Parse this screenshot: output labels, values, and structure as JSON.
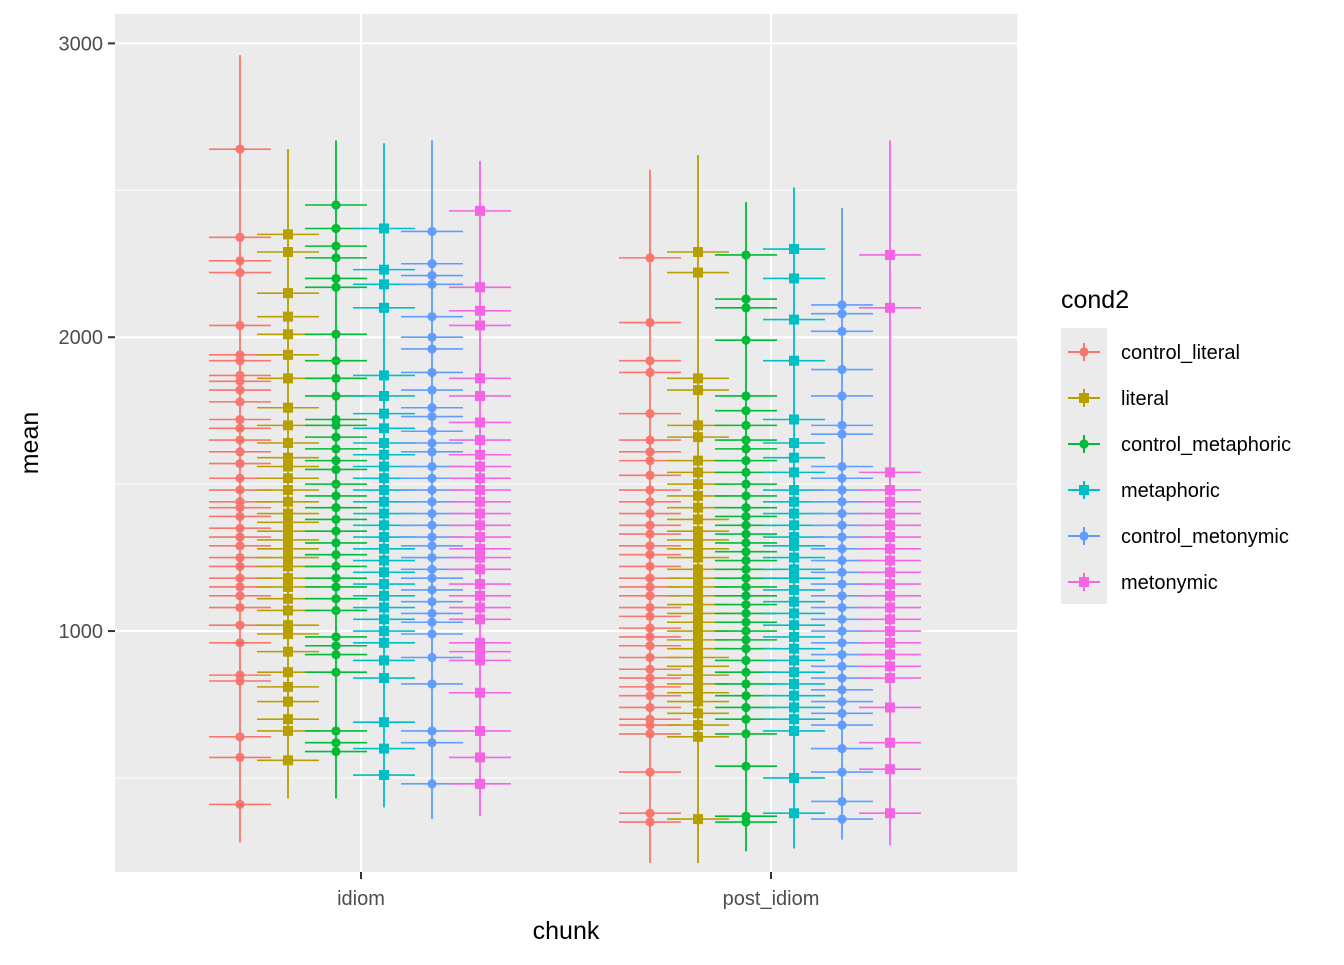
{
  "chart_data": {
    "type": "scatter",
    "title": "",
    "xlabel": "chunk",
    "ylabel": "mean",
    "categories": [
      "idiom",
      "post_idiom"
    ],
    "ylim": [
      180,
      3100
    ],
    "y_ticks": [
      1000,
      2000,
      3000
    ],
    "grid": true,
    "legend": {
      "title": "cond2",
      "position": "right",
      "entries": [
        "control_literal",
        "literal",
        "control_metaphoric",
        "metaphoric",
        "control_metonymic",
        "metonymic"
      ]
    },
    "colors": {
      "control_literal": "#F8766D",
      "literal": "#B79F00",
      "control_metaphoric": "#00BA38",
      "metaphoric": "#00BFC4",
      "control_metonymic": "#619CFF",
      "metonymic": "#F564E3",
      "panel": "#EBEBEB",
      "grid": "#FFFFFF",
      "text": "#4D4D4D"
    },
    "series": [
      {
        "name": "control_literal",
        "shape": "circle",
        "points": [
          {
            "x": "idiom",
            "values": [
              2640,
              2340,
              2260,
              2220,
              2040,
              1940,
              1920,
              1870,
              1850,
              1820,
              1780,
              1720,
              1690,
              1650,
              1610,
              1570,
              1520,
              1480,
              1440,
              1420,
              1390,
              1350,
              1320,
              1290,
              1250,
              1220,
              1180,
              1150,
              1120,
              1080,
              1020,
              960,
              850,
              830,
              640,
              570,
              410
            ],
            "whisker_low": 280,
            "whisker_high": 2960
          },
          {
            "x": "post_idiom",
            "values": [
              2270,
              2050,
              1920,
              1880,
              1740,
              1650,
              1610,
              1580,
              1530,
              1480,
              1440,
              1400,
              1360,
              1330,
              1290,
              1260,
              1220,
              1180,
              1150,
              1120,
              1080,
              1050,
              1010,
              980,
              950,
              910,
              870,
              840,
              810,
              780,
              740,
              700,
              680,
              650,
              520,
              380,
              350
            ],
            "whisker_low": 210,
            "whisker_high": 2570
          }
        ]
      },
      {
        "name": "literal",
        "shape": "square",
        "points": [
          {
            "x": "idiom",
            "values": [
              2350,
              2290,
              2150,
              2070,
              2010,
              1940,
              1860,
              1760,
              1700,
              1640,
              1590,
              1560,
              1520,
              1480,
              1440,
              1400,
              1370,
              1340,
              1310,
              1280,
              1250,
              1220,
              1180,
              1150,
              1110,
              1070,
              1020,
              990,
              930,
              860,
              810,
              760,
              700,
              660,
              560
            ],
            "whisker_low": 430,
            "whisker_high": 2640
          },
          {
            "x": "post_idiom",
            "values": [
              2290,
              2220,
              1860,
              1820,
              1700,
              1660,
              1580,
              1540,
              1500,
              1460,
              1420,
              1380,
              1340,
              1310,
              1280,
              1250,
              1210,
              1180,
              1150,
              1120,
              1090,
              1060,
              1030,
              1000,
              970,
              940,
              910,
              880,
              850,
              820,
              790,
              760,
              720,
              680,
              640,
              360
            ],
            "whisker_low": 210,
            "whisker_high": 2620
          }
        ]
      },
      {
        "name": "control_metaphoric",
        "shape": "circle",
        "points": [
          {
            "x": "idiom",
            "values": [
              2450,
              2370,
              2310,
              2270,
              2200,
              2170,
              2010,
              1920,
              1860,
              1800,
              1720,
              1700,
              1660,
              1620,
              1580,
              1550,
              1500,
              1460,
              1420,
              1380,
              1340,
              1300,
              1260,
              1220,
              1180,
              1150,
              1110,
              1070,
              980,
              950,
              920,
              860,
              660,
              620,
              590
            ],
            "whisker_low": 430,
            "whisker_high": 2670
          },
          {
            "x": "post_idiom",
            "values": [
              2280,
              2130,
              2100,
              1990,
              1800,
              1750,
              1700,
              1650,
              1620,
              1580,
              1540,
              1500,
              1460,
              1420,
              1390,
              1360,
              1330,
              1300,
              1270,
              1240,
              1210,
              1180,
              1150,
              1120,
              1090,
              1060,
              1030,
              1000,
              970,
              940,
              900,
              860,
              820,
              780,
              740,
              700,
              650,
              540,
              370,
              350
            ],
            "whisker_low": 250,
            "whisker_high": 2460
          }
        ]
      },
      {
        "name": "metaphoric",
        "shape": "square",
        "points": [
          {
            "x": "idiom",
            "values": [
              2370,
              2230,
              2180,
              2100,
              1870,
              1800,
              1740,
              1690,
              1640,
              1600,
              1560,
              1520,
              1480,
              1440,
              1400,
              1360,
              1320,
              1280,
              1240,
              1200,
              1160,
              1120,
              1080,
              1040,
              1000,
              960,
              900,
              840,
              690,
              600,
              510
            ],
            "whisker_low": 400,
            "whisker_high": 2660
          },
          {
            "x": "post_idiom",
            "values": [
              2300,
              2200,
              2060,
              1920,
              1720,
              1640,
              1590,
              1540,
              1480,
              1440,
              1400,
              1360,
              1320,
              1290,
              1250,
              1210,
              1180,
              1140,
              1100,
              1060,
              1020,
              980,
              940,
              900,
              860,
              820,
              780,
              740,
              700,
              660,
              500,
              380
            ],
            "whisker_low": 260,
            "whisker_high": 2510
          }
        ]
      },
      {
        "name": "control_metonymic",
        "shape": "circle",
        "points": [
          {
            "x": "idiom",
            "values": [
              2360,
              2250,
              2210,
              2180,
              2070,
              2000,
              1960,
              1880,
              1820,
              1760,
              1730,
              1680,
              1640,
              1610,
              1560,
              1520,
              1480,
              1440,
              1400,
              1360,
              1320,
              1290,
              1250,
              1210,
              1180,
              1140,
              1100,
              1060,
              1030,
              990,
              910,
              820,
              660,
              620,
              480
            ],
            "whisker_low": 360,
            "whisker_high": 2670
          },
          {
            "x": "post_idiom",
            "values": [
              2110,
              2080,
              2020,
              1890,
              1800,
              1700,
              1670,
              1560,
              1520,
              1480,
              1440,
              1400,
              1360,
              1320,
              1280,
              1240,
              1200,
              1160,
              1120,
              1080,
              1040,
              1000,
              960,
              920,
              880,
              840,
              800,
              760,
              720,
              680,
              600,
              520,
              420,
              360
            ],
            "whisker_low": 290,
            "whisker_high": 2440
          }
        ]
      },
      {
        "name": "metonymic",
        "shape": "square",
        "points": [
          {
            "x": "idiom",
            "values": [
              2430,
              2170,
              2090,
              2040,
              1860,
              1800,
              1710,
              1650,
              1600,
              1560,
              1520,
              1480,
              1440,
              1400,
              1360,
              1320,
              1280,
              1250,
              1210,
              1160,
              1120,
              1080,
              1040,
              960,
              930,
              900,
              790,
              660,
              570,
              480
            ],
            "whisker_low": 370,
            "whisker_high": 2600
          },
          {
            "x": "post_idiom",
            "values": [
              2280,
              2100,
              1540,
              1480,
              1440,
              1400,
              1360,
              1320,
              1280,
              1240,
              1200,
              1160,
              1120,
              1080,
              1040,
              1000,
              960,
              920,
              880,
              840,
              740,
              620,
              530,
              380
            ],
            "whisker_low": 270,
            "whisker_high": 2670
          }
        ]
      }
    ]
  }
}
